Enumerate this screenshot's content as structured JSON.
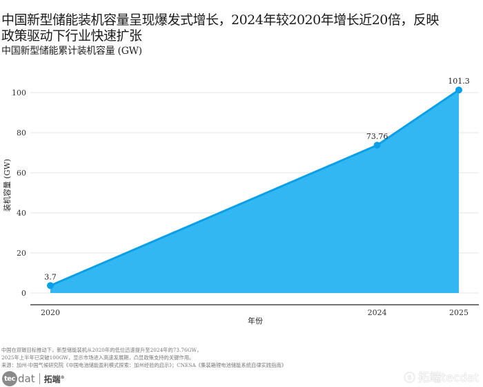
{
  "header": {
    "title": "中国新型储能装机容量呈现爆发式增长，2024年较2020年增长近20倍，反映政策驱动下行业快速扩张",
    "subtitle": "中国新型储能累计装机容量 (GW)"
  },
  "chart_data": {
    "type": "area",
    "title": "中国新型储能累计装机容量 (GW)",
    "xlabel": "年份",
    "ylabel": "装机容量 (GW)",
    "x": [
      2020,
      2024,
      2025
    ],
    "values": [
      3.7,
      73.76,
      101.3
    ],
    "data_labels": [
      "3.7",
      "73.76",
      "101.3"
    ],
    "x_tick_labels": [
      "2020",
      "2024",
      "2025"
    ],
    "y_ticks": [
      0,
      20,
      40,
      60,
      80,
      100
    ],
    "y_tick_labels": [
      "0",
      "20",
      "40",
      "60",
      "80",
      "100"
    ],
    "ylim": [
      0,
      100
    ],
    "grid": "horizontal",
    "legend": "none",
    "colors": {
      "fill": "#33b7f2",
      "line": "#0a9fe6",
      "marker": "#0a9fe6"
    }
  },
  "footer": {
    "lines": [
      "中国在双碳目标推动下，新型储能装机从2020年的低位迅速提升至2024年的73.76GW，",
      "2025年上半年已突破100GW，显示市场进入高速发展期，凸显政策支持的关键作用。",
      "来源：加州-中国气候研究院《中国电池储能盈利模式探索：加州经验的启示》；CNESA《集装箱锂电池储能系统自律实践指南》"
    ]
  },
  "logo": {
    "circle_text": "tec",
    "dat_text": "dat",
    "cn_text": "拓端",
    "reg_mark": "®"
  },
  "watermark": {
    "icon": "weibo-icon",
    "text": "拓端tecdat"
  }
}
